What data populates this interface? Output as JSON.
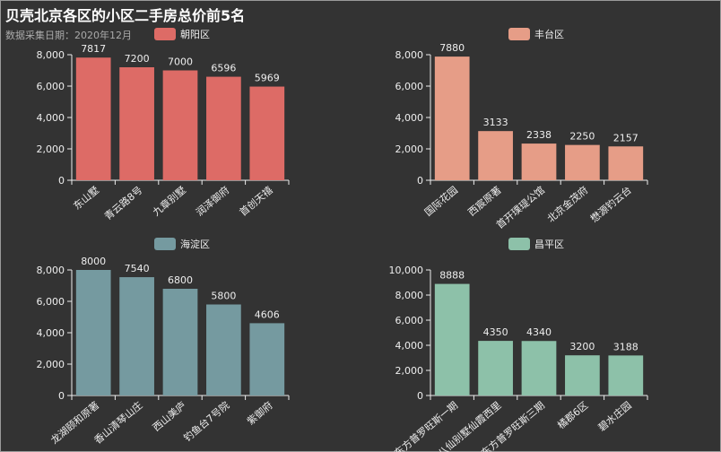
{
  "title": "贝壳北京各区的小区二手房总价前5名",
  "subtitle": "数据采集日期：2020年12月",
  "chart_data": [
    {
      "type": "bar",
      "legend": "朝阳区",
      "color": "#dd6b66",
      "categories": [
        "东山墅",
        "青云路8号",
        "九章别墅",
        "润泽御府",
        "首创天禧"
      ],
      "values": [
        7817,
        7200,
        7000,
        6596,
        5969
      ],
      "ylim": [
        0,
        8000
      ],
      "yticks": [
        "0",
        "2,000",
        "4,000",
        "6,000",
        "8,000"
      ]
    },
    {
      "type": "bar",
      "legend": "丰台区",
      "color": "#e69d87",
      "categories": [
        "国际花园",
        "西宸原著",
        "首开璞瑅公馆",
        "北京金茂府",
        "懋源钓云台"
      ],
      "values": [
        7880,
        3133,
        2338,
        2250,
        2157
      ],
      "ylim": [
        0,
        8000
      ],
      "yticks": [
        "0",
        "2,000",
        "4,000",
        "6,000",
        "8,000"
      ]
    },
    {
      "type": "bar",
      "legend": "海淀区",
      "color": "#759aa0",
      "categories": [
        "龙湖颐和原著",
        "香山清琴山庄",
        "西山美庐",
        "钓鱼台7号院",
        "紫御府"
      ],
      "values": [
        8000,
        7540,
        6800,
        5800,
        4606
      ],
      "ylim": [
        0,
        8000
      ],
      "yticks": [
        "0",
        "2,000",
        "4,000",
        "6,000",
        "8,000"
      ]
    },
    {
      "type": "bar",
      "legend": "昌平区",
      "color": "#8dc1a9",
      "categories": [
        "东方普罗旺斯一期",
        "八仙别墅仙霞西里",
        "东方普罗旺斯三期",
        "橘郡6区",
        "碧水庄园"
      ],
      "values": [
        8888,
        4350,
        4340,
        3200,
        3188
      ],
      "ylim": [
        0,
        10000
      ],
      "yticks": [
        "0",
        "2,000",
        "4,000",
        "6,000",
        "8,000",
        "10,000"
      ]
    }
  ]
}
